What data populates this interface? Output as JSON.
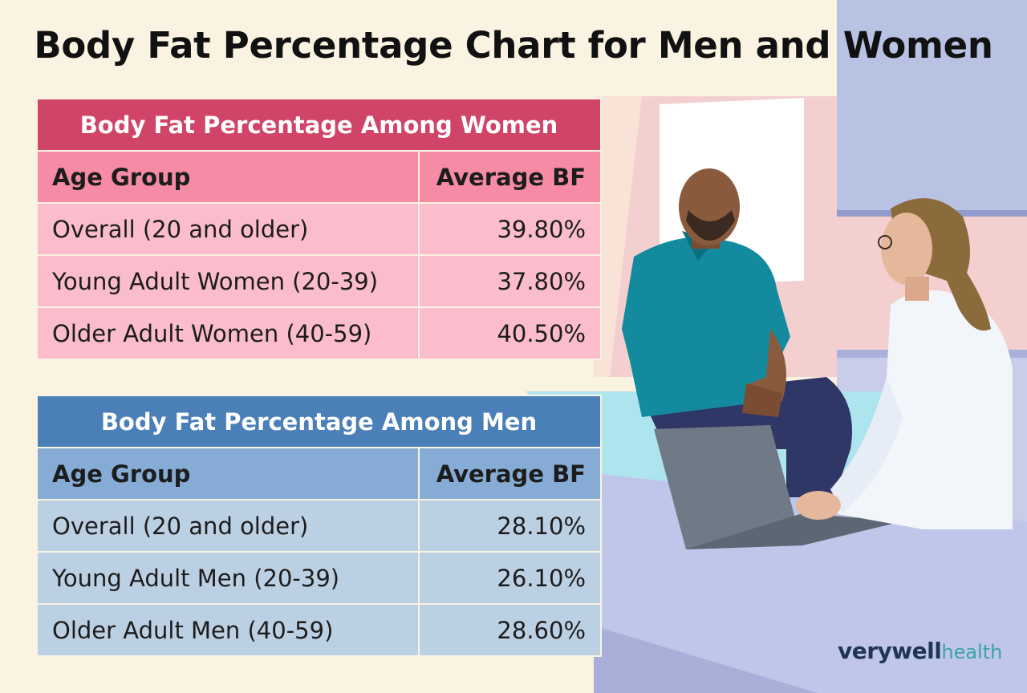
{
  "title": "Body Fat Percentage Chart for Men and Women",
  "chart_data": [
    {
      "type": "table",
      "title": "Body Fat Percentage Among Women",
      "columns": [
        "Age Group",
        "Average BF"
      ],
      "rows": [
        [
          "Overall (20 and older)",
          "39.80%"
        ],
        [
          "Young Adult Women (20-39)",
          "37.80%"
        ],
        [
          "Older Adult Women (40-59)",
          "40.50%"
        ]
      ]
    },
    {
      "type": "table",
      "title": "Body Fat Percentage Among Men",
      "columns": [
        "Age Group",
        "Average BF"
      ],
      "rows": [
        [
          "Overall (20 and older)",
          "28.10%"
        ],
        [
          "Young Adult Men (20-39)",
          "26.10%"
        ],
        [
          "Older Adult Men (40-59)",
          "28.60%"
        ]
      ]
    }
  ],
  "brand": {
    "name_part1": "verywell",
    "name_part2": "health"
  },
  "colors": {
    "background": "#fbf3e2",
    "women_header": "#cf4467",
    "women_column_header": "#f58ba4",
    "women_row": "#fbbccb",
    "men_header": "#4a7fb8",
    "men_column_header": "#86acd6",
    "men_row": "#bcd0e3"
  }
}
